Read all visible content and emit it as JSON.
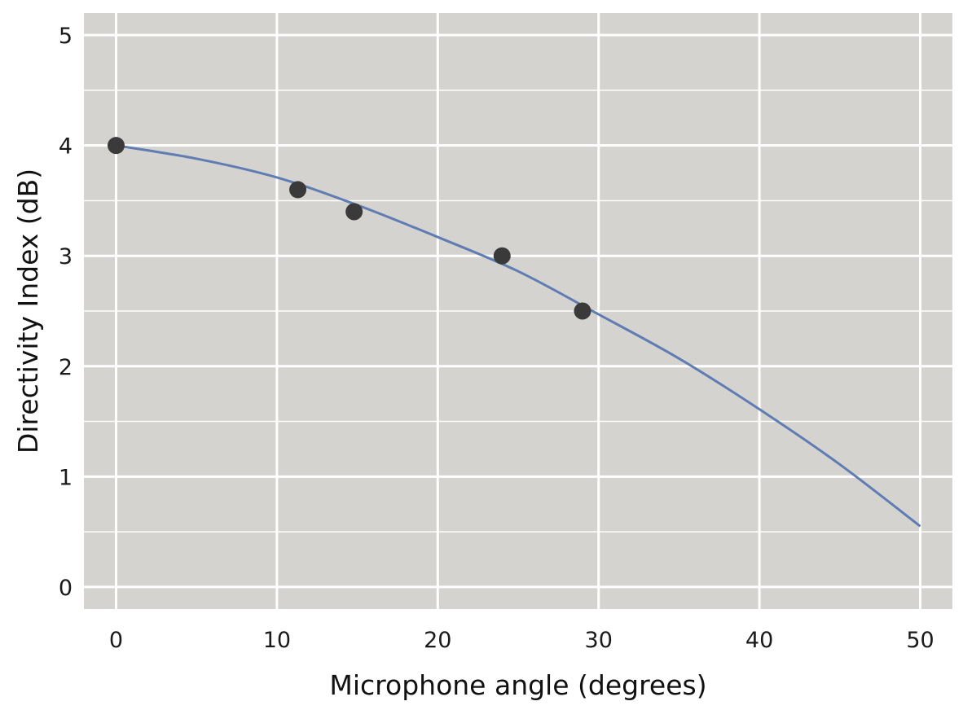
{
  "chart_data": {
    "type": "scatter",
    "title": "",
    "xlabel": "Microphone angle (degrees)",
    "ylabel": "Directivity Index (dB)",
    "xlim": [
      -2,
      52
    ],
    "ylim": [
      -0.2,
      5.2
    ],
    "x_ticks": [
      0,
      10,
      20,
      30,
      40,
      50
    ],
    "y_ticks": [
      0,
      1,
      2,
      3,
      4,
      5
    ],
    "grid": true,
    "legend": "none",
    "points": {
      "x": [
        0,
        11.3,
        14.8,
        24,
        29
      ],
      "y": [
        4.0,
        3.6,
        3.4,
        3.0,
        2.5
      ]
    },
    "fit_line": {
      "x": [
        0,
        5,
        10,
        15,
        20,
        25,
        30,
        35,
        40,
        45,
        50
      ],
      "y": [
        4.0,
        3.88,
        3.71,
        3.46,
        3.17,
        2.86,
        2.47,
        2.07,
        1.61,
        1.11,
        0.55
      ]
    },
    "colors": {
      "panel": "#d4d3cf",
      "grid": "#ffffff",
      "points": "#3a3a3a",
      "line": "#5f7cb3"
    }
  }
}
